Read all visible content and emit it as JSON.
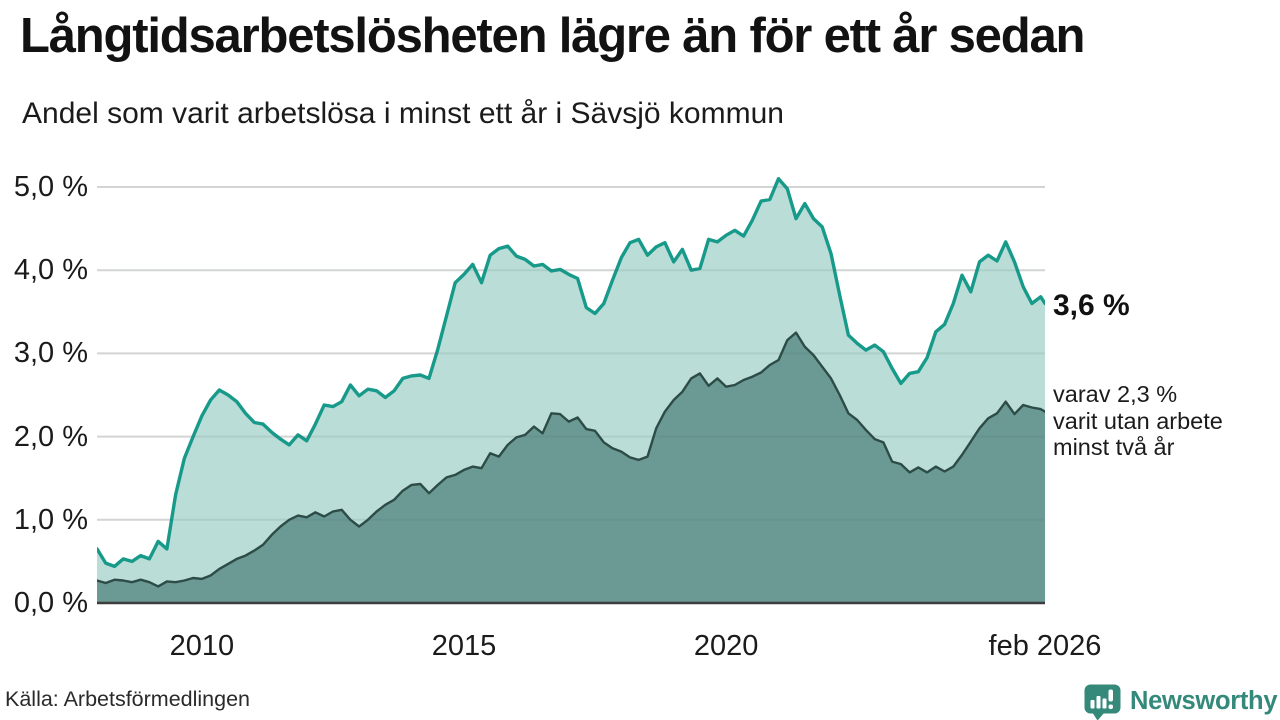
{
  "header": {
    "title": "Långtidsarbetslösheten lägre än för ett år sedan",
    "subtitle": "Andel som varit arbetslösa i minst ett år i Sävsjö kommun"
  },
  "chart_data": {
    "type": "area",
    "title": "Långtidsarbetslösheten lägre än för ett år sedan",
    "subtitle": "Andel som varit arbetslösa i minst ett år i Sävsjö kommun",
    "unit": "%",
    "x_start": 2008.0,
    "x_end": 2026.083,
    "x_step_years": 0.16667,
    "x_note": "points every 2 months from jan 2008 to feb 2026",
    "ylim": [
      0,
      5.2
    ],
    "grid": true,
    "legend_position": "none",
    "yticks": [
      "0,0 %",
      "1,0 %",
      "2,0 %",
      "3,0 %",
      "4,0 %",
      "5,0 %"
    ],
    "ytick_values": [
      0,
      1,
      2,
      3,
      4,
      5
    ],
    "xticks": [
      {
        "label": "2010",
        "year": 2010
      },
      {
        "label": "2015",
        "year": 2015
      },
      {
        "label": "2020",
        "year": 2020
      },
      {
        "label": "feb 2026",
        "year": 2026.083
      }
    ],
    "series": [
      {
        "name": "Andel som varit arbetslösa i minst ett år",
        "line_color": "#189a8b",
        "fill_color": "#aed8d0",
        "line_width": 3.4,
        "end_value_label": "3,6 %",
        "values": [
          0.65,
          0.48,
          0.44,
          0.53,
          0.5,
          0.57,
          0.53,
          0.74,
          0.65,
          1.3,
          1.74,
          2.0,
          2.25,
          2.44,
          2.56,
          2.5,
          2.42,
          2.28,
          2.17,
          2.15,
          2.05,
          1.97,
          1.9,
          2.02,
          1.95,
          2.15,
          2.38,
          2.36,
          2.42,
          2.62,
          2.49,
          2.57,
          2.55,
          2.47,
          2.55,
          2.7,
          2.73,
          2.74,
          2.7,
          3.05,
          3.45,
          3.85,
          3.95,
          4.07,
          3.85,
          4.18,
          4.26,
          4.29,
          4.17,
          4.13,
          4.05,
          4.07,
          3.99,
          4.01,
          3.95,
          3.9,
          3.55,
          3.48,
          3.6,
          3.88,
          4.15,
          4.33,
          4.37,
          4.18,
          4.28,
          4.33,
          4.1,
          4.25,
          4.0,
          4.02,
          4.37,
          4.34,
          4.42,
          4.48,
          4.41,
          4.6,
          4.83,
          4.85,
          5.1,
          4.98,
          4.62,
          4.8,
          4.62,
          4.52,
          4.2,
          3.7,
          3.22,
          3.12,
          3.04,
          3.1,
          3.02,
          2.82,
          2.64,
          2.76,
          2.78,
          2.95,
          3.26,
          3.35,
          3.6,
          3.94,
          3.74,
          4.1,
          4.18,
          4.11,
          4.34,
          4.1,
          3.8,
          3.6,
          3.68,
          3.6
        ]
      },
      {
        "name": "varav varit utan arbete minst två år",
        "line_color": "#2d4c47",
        "fill_color": "#5d8e8a",
        "line_width": 2.4,
        "end_value_label": "2,3 %",
        "values": [
          0.27,
          0.24,
          0.28,
          0.27,
          0.25,
          0.28,
          0.25,
          0.2,
          0.26,
          0.25,
          0.27,
          0.3,
          0.29,
          0.33,
          0.41,
          0.47,
          0.53,
          0.57,
          0.63,
          0.7,
          0.82,
          0.92,
          1.0,
          1.05,
          1.03,
          1.09,
          1.04,
          1.1,
          1.12,
          1.0,
          0.92,
          1.0,
          1.1,
          1.18,
          1.24,
          1.35,
          1.42,
          1.43,
          1.32,
          1.42,
          1.51,
          1.54,
          1.6,
          1.64,
          1.62,
          1.8,
          1.76,
          1.9,
          1.99,
          2.02,
          2.12,
          2.04,
          2.28,
          2.27,
          2.18,
          2.23,
          2.09,
          2.07,
          1.93,
          1.86,
          1.82,
          1.75,
          1.72,
          1.76,
          2.1,
          2.3,
          2.44,
          2.54,
          2.7,
          2.76,
          2.61,
          2.7,
          2.6,
          2.62,
          2.68,
          2.72,
          2.77,
          2.86,
          2.92,
          3.16,
          3.25,
          3.08,
          2.98,
          2.84,
          2.7,
          2.5,
          2.28,
          2.2,
          2.08,
          1.97,
          1.93,
          1.7,
          1.67,
          1.57,
          1.63,
          1.57,
          1.64,
          1.58,
          1.64,
          1.78,
          1.94,
          2.1,
          2.22,
          2.28,
          2.42,
          2.27,
          2.38,
          2.35,
          2.33,
          2.3
        ]
      }
    ],
    "end_labels": {
      "primary": "3,6 %",
      "secondary": [
        "varav 2,3 %",
        "varit utan arbete",
        "minst två år"
      ]
    },
    "colors": {
      "gridline": "#e0e0e0",
      "baseline": "#3d3d3d",
      "grid_overlay": "rgba(64,82,80,0.08)"
    }
  },
  "footer": {
    "source": "Källa: Arbetsförmedlingen",
    "brand": "Newsworthy",
    "brand_color": "#35897b"
  }
}
